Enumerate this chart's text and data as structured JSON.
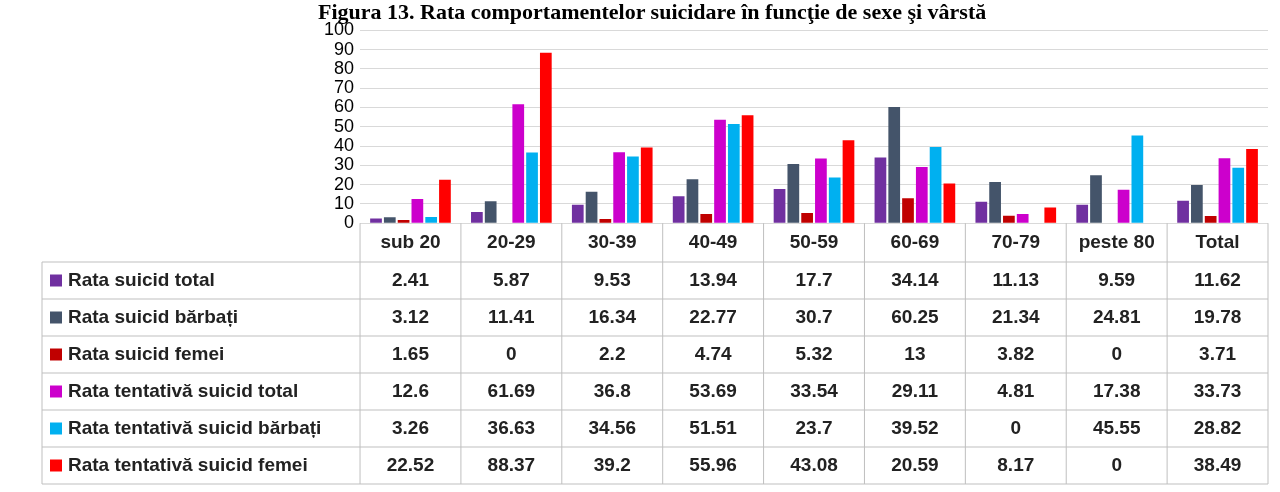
{
  "chart_data": {
    "type": "bar",
    "title": "Figura 13. Rata comportamentelor suicidare în funcţie de sexe şi vârstă",
    "categories": [
      "sub 20",
      "20-29",
      "30-39",
      "40-49",
      "50-59",
      "60-69",
      "70-79",
      "peste 80",
      "Total"
    ],
    "series": [
      {
        "name": "Rata suicid total",
        "color": "#7030a0",
        "values": [
          2.41,
          5.87,
          9.53,
          13.94,
          17.7,
          34.14,
          11.13,
          9.59,
          11.62
        ]
      },
      {
        "name": "Rata suicid bărbați",
        "color": "#44546a",
        "values": [
          3.12,
          11.41,
          16.34,
          22.77,
          30.7,
          60.25,
          21.34,
          24.81,
          19.78
        ]
      },
      {
        "name": "Rata suicid femei",
        "color": "#c00000",
        "values": [
          1.65,
          0,
          2.2,
          4.74,
          5.32,
          13,
          3.82,
          0,
          3.71
        ]
      },
      {
        "name": "Rata tentativă suicid total",
        "color": "#cc00cc",
        "values": [
          12.6,
          61.69,
          36.8,
          53.69,
          33.54,
          29.11,
          4.81,
          17.38,
          33.73
        ]
      },
      {
        "name": "Rata tentativă suicid bărbați",
        "color": "#00b0f0",
        "values": [
          3.26,
          36.63,
          34.56,
          51.51,
          23.7,
          39.52,
          0,
          45.55,
          28.82
        ]
      },
      {
        "name": "Rata tentativă suicid femei",
        "color": "#ff0000",
        "values": [
          22.52,
          88.37,
          39.2,
          55.96,
          43.08,
          20.59,
          8.17,
          0,
          38.49
        ]
      }
    ],
    "ylim": [
      0,
      100
    ],
    "yticks": [
      0,
      10,
      20,
      30,
      40,
      50,
      60,
      70,
      80,
      90,
      100
    ],
    "grid": "y",
    "legend": "bottom left",
    "data_labels": true
  }
}
